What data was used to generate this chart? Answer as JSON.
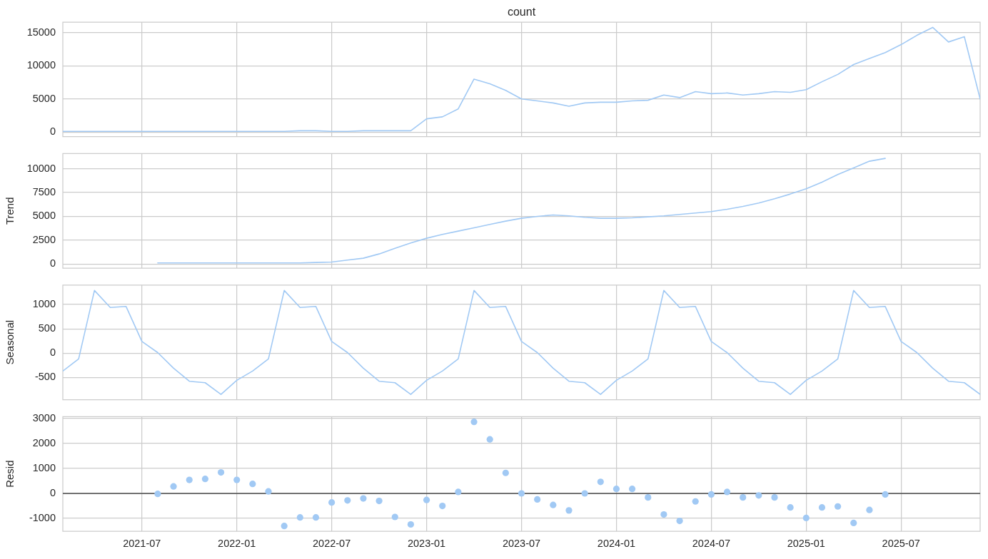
{
  "chart_data": [
    {
      "type": "line",
      "title": "count",
      "x": [
        "2021-02",
        "2021-03",
        "2021-04",
        "2021-05",
        "2021-06",
        "2021-07",
        "2021-08",
        "2021-09",
        "2021-10",
        "2021-11",
        "2021-12",
        "2022-01",
        "2022-02",
        "2022-03",
        "2022-04",
        "2022-05",
        "2022-06",
        "2022-07",
        "2022-08",
        "2022-09",
        "2022-10",
        "2022-11",
        "2022-12",
        "2023-01",
        "2023-02",
        "2023-03",
        "2023-04",
        "2023-05",
        "2023-06",
        "2023-07",
        "2023-08",
        "2023-09",
        "2023-10",
        "2023-11",
        "2023-12",
        "2024-01",
        "2024-02",
        "2024-03",
        "2024-04",
        "2024-05",
        "2024-06",
        "2024-07",
        "2024-08",
        "2024-09",
        "2024-10",
        "2024-11",
        "2024-12",
        "2025-01",
        "2025-02",
        "2025-03",
        "2025-04",
        "2025-05",
        "2025-06",
        "2025-07",
        "2025-08",
        "2025-09",
        "2025-10",
        "2025-11",
        "2025-12"
      ],
      "values": [
        100,
        100,
        100,
        100,
        100,
        100,
        100,
        100,
        100,
        100,
        100,
        100,
        100,
        100,
        100,
        200,
        200,
        100,
        100,
        200,
        200,
        200,
        200,
        2000,
        2300,
        3500,
        8000,
        7300,
        6300,
        5000,
        4700,
        4400,
        3900,
        4400,
        4500,
        4500,
        4700,
        4800,
        5600,
        5200,
        6100,
        5800,
        5900,
        5600,
        5800,
        6100,
        6000,
        6400,
        7600,
        8700,
        10200,
        11100,
        12000,
        13200,
        14600,
        15800,
        13600,
        14400,
        5000
      ],
      "color": "#a1c9f4",
      "xlim": [
        "2021-02",
        "2025-12"
      ],
      "xticks": [
        "2021-07",
        "2022-01",
        "2022-07",
        "2023-01",
        "2023-07",
        "2024-01",
        "2024-07",
        "2025-01",
        "2025-07"
      ],
      "ylim": [
        -700,
        16600
      ],
      "yticks": [
        0,
        5000,
        10000,
        15000
      ],
      "grid": true,
      "tick_labels": "y"
    },
    {
      "type": "line",
      "ylabel": "Trend",
      "x": [
        "2021-08",
        "2021-09",
        "2021-10",
        "2021-11",
        "2021-12",
        "2022-01",
        "2022-02",
        "2022-03",
        "2022-04",
        "2022-05",
        "2022-06",
        "2022-07",
        "2022-08",
        "2022-09",
        "2022-10",
        "2022-11",
        "2022-12",
        "2023-01",
        "2023-02",
        "2023-03",
        "2023-04",
        "2023-05",
        "2023-06",
        "2023-07",
        "2023-08",
        "2023-09",
        "2023-10",
        "2023-11",
        "2023-12",
        "2024-01",
        "2024-02",
        "2024-03",
        "2024-04",
        "2024-05",
        "2024-06",
        "2024-07",
        "2024-08",
        "2024-09",
        "2024-10",
        "2024-11",
        "2024-12",
        "2025-01",
        "2025-02",
        "2025-03",
        "2025-04",
        "2025-05",
        "2025-06"
      ],
      "values": [
        100,
        100,
        100,
        100,
        100,
        100,
        100,
        100,
        100,
        100,
        150,
        200,
        400,
        600,
        1050,
        1650,
        2200,
        2700,
        3100,
        3450,
        3800,
        4150,
        4500,
        4800,
        5000,
        5150,
        5050,
        4900,
        4800,
        4800,
        4850,
        4950,
        5050,
        5200,
        5350,
        5500,
        5750,
        6050,
        6400,
        6850,
        7350,
        7900,
        8600,
        9400,
        10100,
        10800,
        11100
      ],
      "color": "#a1c9f4",
      "xlim": [
        "2021-02",
        "2025-12"
      ],
      "xticks": [
        "2021-07",
        "2022-01",
        "2022-07",
        "2023-01",
        "2023-07",
        "2024-01",
        "2024-07",
        "2025-01",
        "2025-07"
      ],
      "ylim": [
        -450,
        11600
      ],
      "yticks": [
        0,
        2500,
        5000,
        7500,
        10000
      ],
      "grid": true,
      "tick_labels": "y"
    },
    {
      "type": "line",
      "ylabel": "Seasonal",
      "x": [
        "2021-02",
        "2021-03",
        "2021-04",
        "2021-05",
        "2021-06",
        "2021-07",
        "2021-08",
        "2021-09",
        "2021-10",
        "2021-11",
        "2021-12",
        "2022-01",
        "2022-02",
        "2022-03",
        "2022-04",
        "2022-05",
        "2022-06",
        "2022-07",
        "2022-08",
        "2022-09",
        "2022-10",
        "2022-11",
        "2022-12",
        "2023-01",
        "2023-02",
        "2023-03",
        "2023-04",
        "2023-05",
        "2023-06",
        "2023-07",
        "2023-08",
        "2023-09",
        "2023-10",
        "2023-11",
        "2023-12",
        "2024-01",
        "2024-02",
        "2024-03",
        "2024-04",
        "2024-05",
        "2024-06",
        "2024-07",
        "2024-08",
        "2024-09",
        "2024-10",
        "2024-11",
        "2024-12",
        "2025-01",
        "2025-02",
        "2025-03",
        "2025-04",
        "2025-05",
        "2025-06",
        "2025-07",
        "2025-08",
        "2025-09",
        "2025-10",
        "2025-11",
        "2025-12"
      ],
      "values": [
        -370,
        -120,
        1290,
        940,
        960,
        240,
        10,
        -310,
        -580,
        -610,
        -850,
        -560,
        -370,
        -120,
        1290,
        940,
        960,
        240,
        10,
        -310,
        -580,
        -610,
        -850,
        -560,
        -370,
        -120,
        1290,
        940,
        960,
        240,
        10,
        -310,
        -580,
        -610,
        -850,
        -560,
        -370,
        -120,
        1290,
        940,
        960,
        240,
        10,
        -310,
        -580,
        -610,
        -850,
        -560,
        -370,
        -120,
        1290,
        940,
        960,
        240,
        10,
        -310,
        -580,
        -610,
        -850
      ],
      "color": "#a1c9f4",
      "xlim": [
        "2021-02",
        "2025-12"
      ],
      "xticks": [
        "2021-07",
        "2022-01",
        "2022-07",
        "2023-01",
        "2023-07",
        "2024-01",
        "2024-07",
        "2025-01",
        "2025-07"
      ],
      "ylim": [
        -960,
        1400
      ],
      "yticks": [
        -500,
        0,
        500,
        1000
      ],
      "grid": true,
      "tick_labels": "y"
    },
    {
      "type": "scatter",
      "ylabel": "Resid",
      "marker": "circle",
      "x": [
        "2021-08",
        "2021-09",
        "2021-10",
        "2021-11",
        "2021-12",
        "2022-01",
        "2022-02",
        "2022-03",
        "2022-04",
        "2022-05",
        "2022-06",
        "2022-07",
        "2022-08",
        "2022-09",
        "2022-10",
        "2022-11",
        "2022-12",
        "2023-01",
        "2023-02",
        "2023-03",
        "2023-04",
        "2023-05",
        "2023-06",
        "2023-07",
        "2023-08",
        "2023-09",
        "2023-10",
        "2023-11",
        "2023-12",
        "2024-01",
        "2024-02",
        "2024-03",
        "2024-04",
        "2024-05",
        "2024-06",
        "2024-07",
        "2024-08",
        "2024-09",
        "2024-10",
        "2024-11",
        "2024-12",
        "2025-01",
        "2025-02",
        "2025-03",
        "2025-04",
        "2025-05",
        "2025-06"
      ],
      "values": [
        -20,
        280,
        540,
        580,
        840,
        540,
        380,
        80,
        -1300,
        -960,
        -960,
        -360,
        -280,
        -200,
        -300,
        -940,
        -1240,
        -260,
        -500,
        60,
        2860,
        2160,
        820,
        0,
        -240,
        -460,
        -680,
        0,
        460,
        180,
        180,
        -160,
        -840,
        -1100,
        -320,
        -40,
        60,
        -160,
        -80,
        -160,
        -560,
        -980,
        -560,
        -520,
        -1180,
        -660,
        -40
      ],
      "color": "#a1c9f4",
      "xlim": [
        "2021-02",
        "2025-12"
      ],
      "xticks": [
        "2021-07",
        "2022-01",
        "2022-07",
        "2023-01",
        "2023-07",
        "2024-01",
        "2024-07",
        "2025-01",
        "2025-07"
      ],
      "ylim": [
        -1510,
        3070
      ],
      "yticks": [
        -1000,
        0,
        1000,
        2000,
        3000
      ],
      "ref_lines": [
        {
          "axis": "y",
          "value": 0,
          "color": "#333333"
        }
      ],
      "grid": true
    }
  ]
}
